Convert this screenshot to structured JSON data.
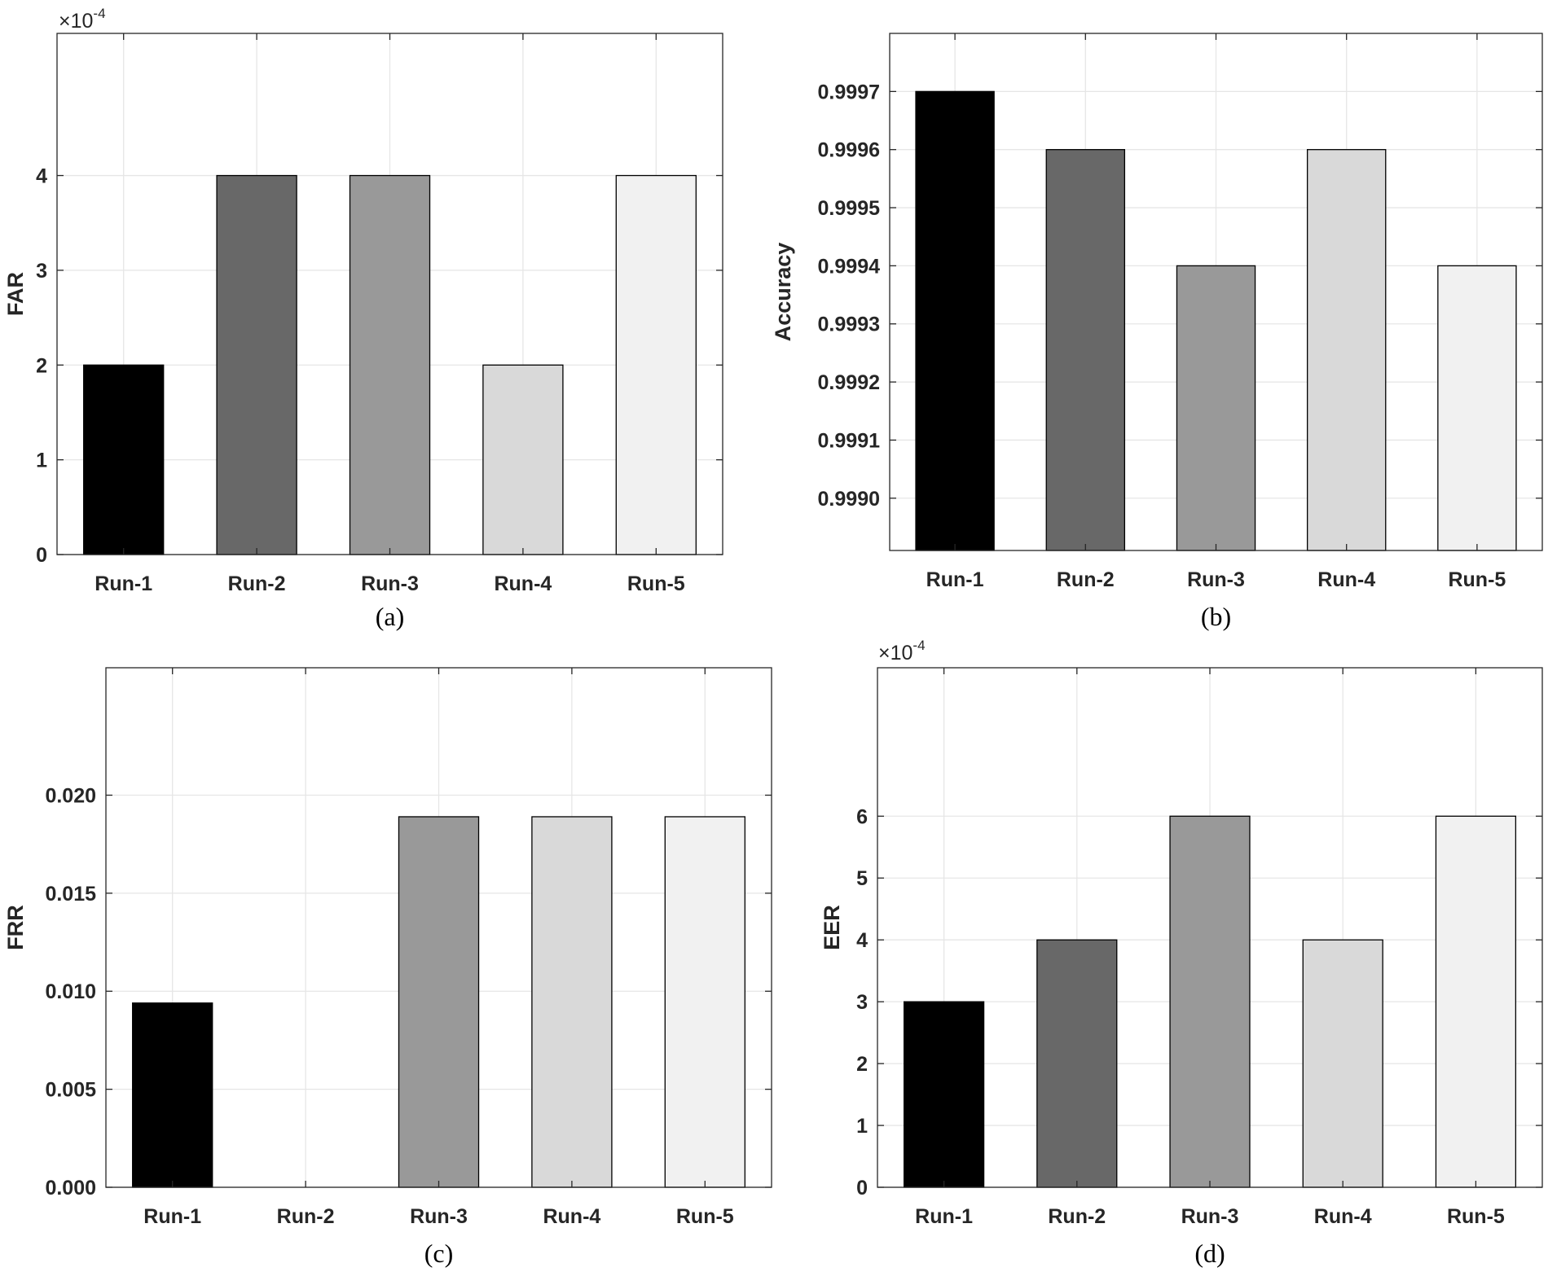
{
  "palette": [
    "#000000",
    "#686868",
    "#999999",
    "#d9d9d9",
    "#f1f1f1"
  ],
  "chart_data": [
    {
      "type": "bar",
      "caption": "(a)",
      "ylabel": "FAR",
      "exponent_label": {
        "base": "×10",
        "power": "-4"
      },
      "categories": [
        "Run-1",
        "Run-2",
        "Run-3",
        "Run-4",
        "Run-5"
      ],
      "values": [
        0.0002,
        0.0004,
        0.0004,
        0.0002,
        0.0004
      ],
      "ylim": [
        0,
        0.00055
      ],
      "yticks": [
        0,
        0.0001,
        0.0002,
        0.0003,
        0.0004
      ],
      "ytick_labels": [
        "0",
        "1",
        "2",
        "3",
        "4"
      ],
      "grid": true
    },
    {
      "type": "bar",
      "caption": "(b)",
      "ylabel": "Accuracy",
      "categories": [
        "Run-1",
        "Run-2",
        "Run-3",
        "Run-4",
        "Run-5"
      ],
      "values": [
        0.9997,
        0.9996,
        0.9994,
        0.9996,
        0.9994
      ],
      "ylim": [
        0.99891,
        0.9998
      ],
      "yticks": [
        0.999,
        0.9991,
        0.9992,
        0.9993,
        0.9994,
        0.9995,
        0.9996,
        0.9997
      ],
      "ytick_labels": [
        "0.9990",
        "0.9991",
        "0.9992",
        "0.9993",
        "0.9994",
        "0.9995",
        "0.9996",
        "0.9997"
      ],
      "grid": true
    },
    {
      "type": "bar",
      "caption": "(c)",
      "ylabel": "FRR",
      "categories": [
        "Run-1",
        "Run-2",
        "Run-3",
        "Run-4",
        "Run-5"
      ],
      "values": [
        0.0094,
        0,
        0.0189,
        0.0189,
        0.0189
      ],
      "ylim": [
        0,
        0.0265
      ],
      "yticks": [
        0,
        0.005,
        0.01,
        0.015,
        0.02
      ],
      "ytick_labels": [
        "0.000",
        "0.005",
        "0.010",
        "0.015",
        "0.020"
      ],
      "grid": true
    },
    {
      "type": "bar",
      "caption": "(d)",
      "ylabel": "EER",
      "exponent_label": {
        "base": "×10",
        "power": "-4"
      },
      "categories": [
        "Run-1",
        "Run-2",
        "Run-3",
        "Run-4",
        "Run-5"
      ],
      "values": [
        0.0003,
        0.0004,
        0.0006,
        0.0004,
        0.0006
      ],
      "ylim": [
        0,
        0.00084
      ],
      "yticks": [
        0,
        0.0001,
        0.0002,
        0.0003,
        0.0004,
        0.0005,
        0.0006
      ],
      "ytick_labels": [
        "0",
        "1",
        "2",
        "3",
        "4",
        "5",
        "6"
      ],
      "grid": true
    }
  ]
}
